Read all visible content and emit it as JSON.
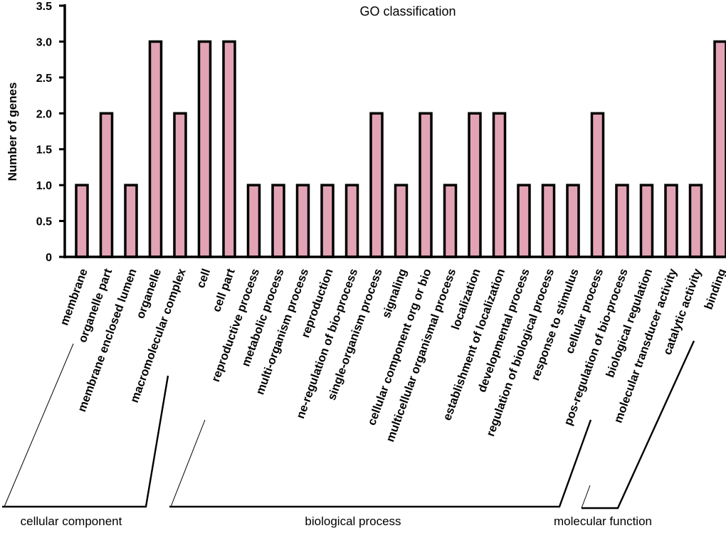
{
  "chart_data": {
    "type": "bar",
    "title": "GO classification",
    "xlabel": "",
    "ylabel": "Number of genes",
    "ylim": [
      0,
      3.5
    ],
    "yticks": [
      0,
      0.5,
      1.0,
      1.5,
      2.0,
      2.5,
      3.0,
      3.5
    ],
    "ytick_labels": [
      "0",
      "0.5",
      "1.0",
      "1.5",
      "2.0",
      "2.5",
      "3.0",
      "3.5"
    ],
    "grid": false,
    "categories": [
      "membrane",
      "organelle part",
      "membrane enclosed lumen",
      "organelle",
      "macromolecular complex",
      "cell",
      "cell part",
      "reproductive process",
      "metabolic process",
      "multi-organism process",
      "reproduction",
      "ne-regulation of bio-process",
      "single-organism process",
      "signaling",
      "cellular component org or bio",
      "multicellular organismal process",
      "localization",
      "establishment of localization",
      "developmental process",
      "regulation of biological process",
      "response to stimulus",
      "cellular process",
      "pos-regulation of bio-process",
      "biological regulation",
      "molecular transducer activity",
      "catalytic activity",
      "binding"
    ],
    "values": [
      1,
      2,
      1,
      3,
      2,
      3,
      3,
      1,
      1,
      1,
      1,
      1,
      2,
      1,
      2,
      1,
      2,
      2,
      1,
      1,
      1,
      2,
      1,
      1,
      1,
      1,
      3
    ],
    "bar_color": "#e2a3b5",
    "groups": [
      {
        "name": "cellular component",
        "start": 0,
        "end": 6
      },
      {
        "name": "biological process",
        "start": 7,
        "end": 23
      },
      {
        "name": "molecular function",
        "start": 24,
        "end": 26
      }
    ]
  }
}
